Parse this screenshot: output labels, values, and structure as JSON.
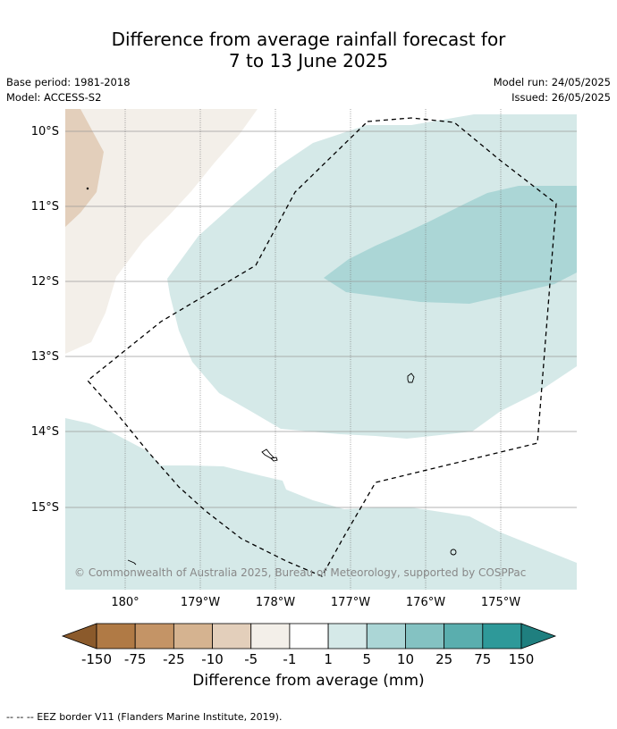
{
  "title_line1": "Difference from average rainfall forecast for",
  "title_line2": "7 to 13 June 2025",
  "base_period": "Base period: 1981-2018",
  "model": "Model: ACCESS-S2",
  "model_run": "Model run: 24/05/2025",
  "issued": "Issued: 26/05/2025",
  "lat_labels": [
    "10°S",
    "11°S",
    "12°S",
    "13°S",
    "14°S",
    "15°S"
  ],
  "lon_labels": [
    "180°",
    "179°W",
    "178°W",
    "177°W",
    "176°W",
    "175°W"
  ],
  "copyright": "© Commonwealth of Australia 2025, Bureau of Meteorology, supported by COSPPac",
  "colorbar": {
    "title": "Difference from average (mm)",
    "ticks": [
      "-150",
      "-75",
      "-25",
      "-10",
      "-5",
      "-1",
      "1",
      "5",
      "10",
      "25",
      "75",
      "150"
    ],
    "colors": [
      "#8b5a2b",
      "#b07a45",
      "#c49466",
      "#d5b390",
      "#e3cfbb",
      "#f3efe9",
      "#ffffff",
      "#d5e9e8",
      "#abd6d6",
      "#84c2c2",
      "#5aaeae",
      "#2e9999",
      "#1f7f7f"
    ]
  },
  "footnote": "--  --  -- EEZ border V11 (Flanders Marine Institute, 2019)."
}
